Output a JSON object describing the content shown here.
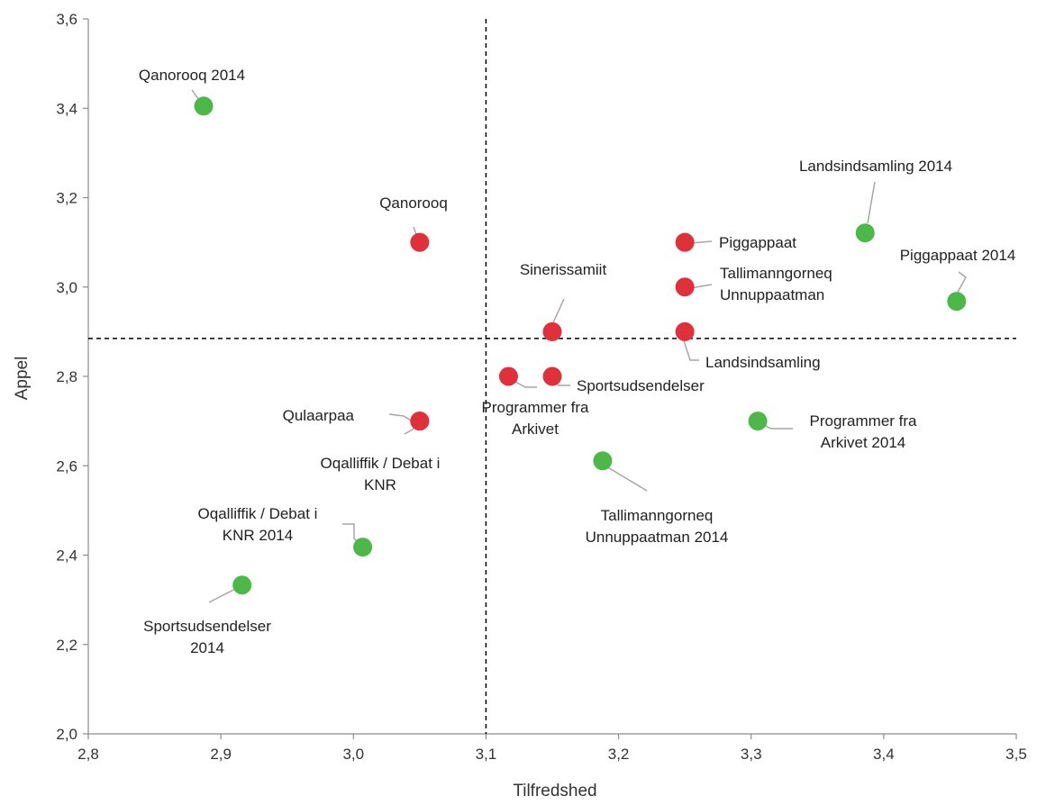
{
  "chart_data": {
    "type": "scatter",
    "title": "",
    "xlabel": "Tilfredshed",
    "ylabel": "Appel",
    "xlim": [
      2.8,
      3.5
    ],
    "ylim": [
      2.0,
      3.6
    ],
    "x_ticks": [
      "2,8",
      "2,9",
      "3,0",
      "3,1",
      "3,2",
      "3,3",
      "3,4",
      "3,5"
    ],
    "y_ticks": [
      "2,0",
      "2,2",
      "2,4",
      "2,6",
      "2,8",
      "3,0",
      "3,2",
      "3,4",
      "3,6"
    ],
    "grid": false,
    "reference_lines": {
      "x": 3.1,
      "y": 2.885
    },
    "series_colors": {
      "current": "#e0303a",
      "y2014": "#4cb848"
    },
    "series": [
      {
        "color": "#e0303a",
        "points": [
          {
            "label": [
              "Qanorooq"
            ],
            "x": 3.05,
            "y": 3.1
          },
          {
            "label": [
              "Piggappaat"
            ],
            "x": 3.25,
            "y": 3.1
          },
          {
            "label": [
              "Tallimanngorneq",
              "Unnuppaatman"
            ],
            "x": 3.25,
            "y": 3.0
          },
          {
            "label": [
              "Sinerissamiit"
            ],
            "x": 3.15,
            "y": 2.9
          },
          {
            "label": [
              "Landsindsamling"
            ],
            "x": 3.25,
            "y": 2.9
          },
          {
            "label": [
              "Programmer fra",
              "Arkivet"
            ],
            "x": 3.117,
            "y": 2.8
          },
          {
            "label": [
              "Sportsudsendelser"
            ],
            "x": 3.15,
            "y": 2.8
          },
          {
            "label": [
              "Qulaarpaa"
            ],
            "x": 3.05,
            "y": 2.7
          },
          {
            "label": [
              "Oqalliffik / Debat i",
              "KNR"
            ],
            "x": 3.05,
            "y": 2.7
          }
        ]
      },
      {
        "color": "#4cb848",
        "points": [
          {
            "label": [
              "Qanorooq 2014"
            ],
            "x": 2.887,
            "y": 3.405
          },
          {
            "label": [
              "Landsindsamling 2014"
            ],
            "x": 3.386,
            "y": 3.121
          },
          {
            "label": [
              "Piggappaat 2014"
            ],
            "x": 3.455,
            "y": 2.968
          },
          {
            "label": [
              "Programmer fra",
              "Arkivet 2014"
            ],
            "x": 3.305,
            "y": 2.7
          },
          {
            "label": [
              "Tallimanngorneq",
              "Unnuppaatman 2014"
            ],
            "x": 3.188,
            "y": 2.611
          },
          {
            "label": [
              "Oqalliffik / Debat i",
              "KNR 2014"
            ],
            "x": 3.007,
            "y": 2.418
          },
          {
            "label": [
              "Sportsudsendelser",
              "2014"
            ],
            "x": 2.916,
            "y": 2.333
          }
        ]
      }
    ]
  }
}
